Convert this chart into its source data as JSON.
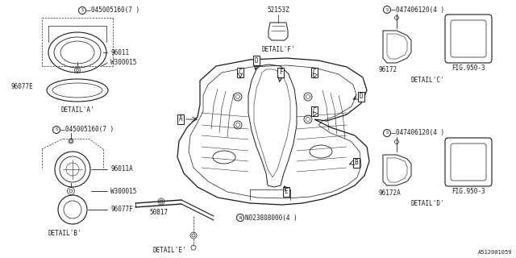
{
  "background_color": "#ffffff",
  "line_color": "#1a1a1a",
  "fig_width": 6.4,
  "fig_height": 3.2,
  "dpi": 100,
  "part_number_bottom_right": "A512001059",
  "labels": {
    "p1": "045005160(7 )",
    "p1b": "045005160(7 )",
    "p2": "047406120(4 )",
    "p2b": "047406120(4 )",
    "p3": "52153Z",
    "p4": "96011",
    "p5": "W300015",
    "p6": "96077E",
    "p7": "96011A",
    "p8": "W300015",
    "p9": "96077F",
    "p10": "96172",
    "p11": "FIG.950-3",
    "p12": "96172A",
    "p13": "FIG.950-3",
    "p14": "50817",
    "p15": "N023808000(4 )"
  }
}
